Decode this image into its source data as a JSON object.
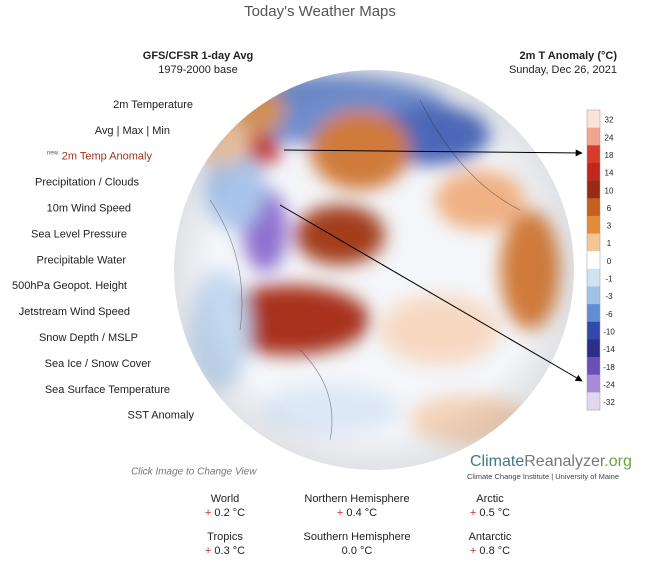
{
  "header": {
    "title": "Today's Weather Maps",
    "left": [
      "GFS/CFSR 1-day Avg",
      "1979-2000 base"
    ],
    "right": [
      "2m T Anomaly (°C)",
      "Sunday, Dec 26, 2021"
    ]
  },
  "menu": {
    "items": [
      "2m Temperature",
      "Avg  |  Max  |  Min",
      "2m Temp Anomaly",
      "Precipitation / Clouds",
      "10m Wind Speed",
      "Sea Level Pressure",
      "Precipitable Water",
      "500hPa Geopot. Height",
      "Jetstream Wind Speed",
      "Snow Depth / MSLP",
      "Sea Ice / Snow Cover",
      "Sea Surface Temperature",
      "SST Anomaly"
    ],
    "new_badge": "new"
  },
  "colorbar": {
    "labels": [
      "32",
      "24",
      "18",
      "14",
      "10",
      "6",
      "3",
      "1",
      "0",
      "-1",
      "-3",
      "-6",
      "-10",
      "-14",
      "-18",
      "-24",
      "-32"
    ],
    "colors": [
      "#fbe3d6",
      "#f2a58c",
      "#d83b2b",
      "#c0281f",
      "#9b2a14",
      "#c5601e",
      "#e48a3a",
      "#f5c596",
      "#ffffff",
      "#cfe2f2",
      "#9fc3e6",
      "#5f8fd2",
      "#3149a8",
      "#2c2f8a",
      "#6a4fb8",
      "#a78ad8",
      "#e2d8ee"
    ]
  },
  "footer": {
    "hint": "Click Image to Change View",
    "logo_climate": "Climate",
    "logo_reanalyzer": "Reanalyzer",
    "logo_org": ".org",
    "institute": "Climate Change Institute | University of Maine"
  },
  "stats": [
    {
      "name": "World",
      "sign": "+",
      "value": "0.2 °C"
    },
    {
      "name": "Northern Hemisphere",
      "sign": "+",
      "value": "0.4 °C"
    },
    {
      "name": "Arctic",
      "sign": "+",
      "value": "0.5 °C"
    },
    {
      "name": "Tropics",
      "sign": "+",
      "value": "0.3 °C"
    },
    {
      "name": "Southern Hemisphere",
      "sign": "",
      "value": "0.0 °C"
    },
    {
      "name": "Antarctic",
      "sign": "+",
      "value": "0.8 °C"
    }
  ]
}
